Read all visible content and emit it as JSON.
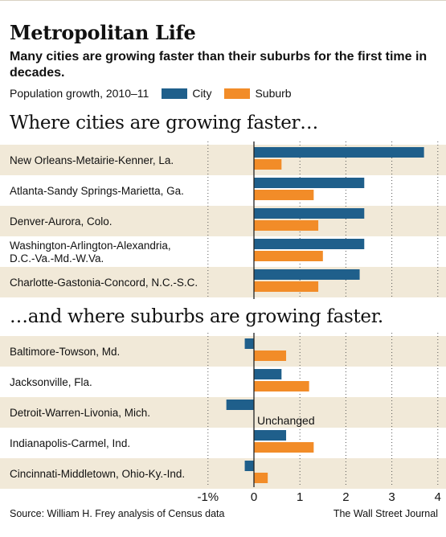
{
  "title": "Metropolitan Life",
  "subtitle": "Many cities are growing faster than their suburbs for the first time in decades.",
  "legend": {
    "caption": "Population growth, 2010–11",
    "city_label": "City",
    "suburb_label": "Suburb",
    "city_color": "#1f5f8b",
    "suburb_color": "#f28c28"
  },
  "sections": [
    {
      "title": "Where cities are growing faster…"
    },
    {
      "title": "…and where suburbs are growing faster."
    }
  ],
  "annotation": "Unchanged",
  "source": "Source: William H. Frey analysis of Census data",
  "credit": "The Wall Street Journal",
  "colors": {
    "band": "#f1e9d8",
    "axis": "#222222",
    "grid": "#555555"
  },
  "chart_data": {
    "type": "bar",
    "orientation": "horizontal",
    "unit": "%",
    "xlim": [
      -1,
      4
    ],
    "x_ticks": [
      -1,
      0,
      1,
      2,
      3,
      4
    ],
    "x_tick_labels": [
      "-1%",
      "0",
      "1",
      "2",
      "3",
      "4"
    ],
    "grid": "dotted vertical",
    "series": [
      {
        "name": "City",
        "color": "#1f5f8b"
      },
      {
        "name": "Suburb",
        "color": "#f28c28"
      }
    ],
    "groups": [
      {
        "section": 0,
        "rows": [
          {
            "label": [
              "New Orleans-Metairie-Kenner, La."
            ],
            "city": 3.7,
            "suburb": 0.6
          },
          {
            "label": [
              "Atlanta-Sandy Springs-Marietta, Ga."
            ],
            "city": 2.4,
            "suburb": 1.3
          },
          {
            "label": [
              "Denver-Aurora, Colo."
            ],
            "city": 2.4,
            "suburb": 1.4
          },
          {
            "label": [
              "Washington-Arlington-Alexandria,",
              "D.C.-Va.-Md.-W.Va."
            ],
            "city": 2.4,
            "suburb": 1.5
          },
          {
            "label": [
              "Charlotte-Gastonia-Concord, N.C.-S.C."
            ],
            "city": 2.3,
            "suburb": 1.4
          }
        ]
      },
      {
        "section": 1,
        "rows": [
          {
            "label": [
              "Baltimore-Towson, Md."
            ],
            "city": -0.2,
            "suburb": 0.7
          },
          {
            "label": [
              "Jacksonville, Fla."
            ],
            "city": 0.6,
            "suburb": 1.2
          },
          {
            "label": [
              "Detroit-Warren-Livonia, Mich."
            ],
            "city": -0.6,
            "suburb": 0.0
          },
          {
            "label": [
              "Indianapolis-Carmel, Ind."
            ],
            "city": 0.7,
            "suburb": 1.3
          },
          {
            "label": [
              "Cincinnati-Middletown, Ohio-Ky.-Ind."
            ],
            "city": -0.2,
            "suburb": 0.3
          }
        ]
      }
    ]
  }
}
